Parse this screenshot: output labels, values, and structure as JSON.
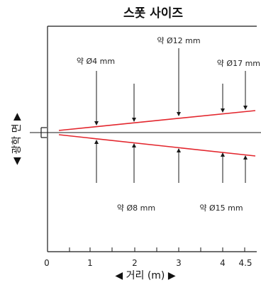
{
  "title": "스폿 사이즈",
  "x_axis_label": "◀ 거리 (m) ▶",
  "y_axis_label": "◀ 광학 면 ▶",
  "x_ticks": [
    "0",
    "1",
    "2",
    "3",
    "4",
    "4.5"
  ],
  "spot_labels": {
    "d1": "약 Ø4 mm",
    "d2": "약 Ø8 mm",
    "d3": "약 Ø12 mm",
    "d4": "약 Ø15 mm",
    "d45": "약 Ø17 mm"
  },
  "colors": {
    "beam": "#e3262d",
    "lines": "#1a1a1a"
  }
}
